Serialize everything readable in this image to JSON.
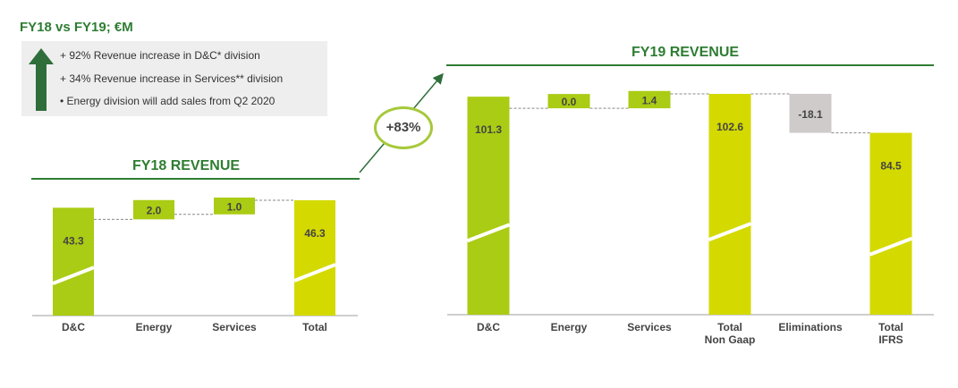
{
  "heading": "FY18 vs FY19; €M",
  "notes": [
    "+ 92% Revenue increase in D&C* division",
    "+ 34% Revenue increase in Services** division",
    "• Energy division will add sales from Q2 2020"
  ],
  "growth_badge": "+83%",
  "colors": {
    "green_dark": "#2e7d32",
    "bar_green": "#aacc14",
    "bar_yellow": "#d4d900",
    "bar_grey": "#cfcbcb",
    "arrow": "#2f6e3b"
  },
  "chart_data": [
    {
      "type": "waterfall",
      "title": "FY18 REVENUE",
      "categories": [
        "D&C",
        "Energy",
        "Services",
        "Total"
      ],
      "values": [
        43.3,
        2.0,
        1.0,
        46.3
      ],
      "labels": [
        "43.3",
        "2.0",
        "1.0",
        "46.3"
      ],
      "kinds": [
        "total",
        "delta",
        "delta",
        "total"
      ],
      "colors": [
        "bar_green",
        "bar_green",
        "bar_green",
        "bar_yellow"
      ],
      "ylim": [
        0,
        46.3
      ]
    },
    {
      "type": "waterfall",
      "title": "FY19 REVENUE",
      "categories": [
        "D&C",
        "Energy",
        "Services",
        "Total\nNon Gaap",
        "Eliminations",
        "Total\nIFRS"
      ],
      "values": [
        101.3,
        0.0,
        1.4,
        102.6,
        -18.1,
        84.5
      ],
      "labels": [
        "101.3",
        "0.0",
        "1.4",
        "102.6",
        "-18.1",
        "84.5"
      ],
      "kinds": [
        "total",
        "delta",
        "delta",
        "total",
        "delta",
        "total"
      ],
      "colors": [
        "bar_green",
        "bar_green",
        "bar_green",
        "bar_yellow",
        "bar_grey",
        "bar_yellow"
      ],
      "ylim": [
        0,
        102.6
      ]
    }
  ]
}
